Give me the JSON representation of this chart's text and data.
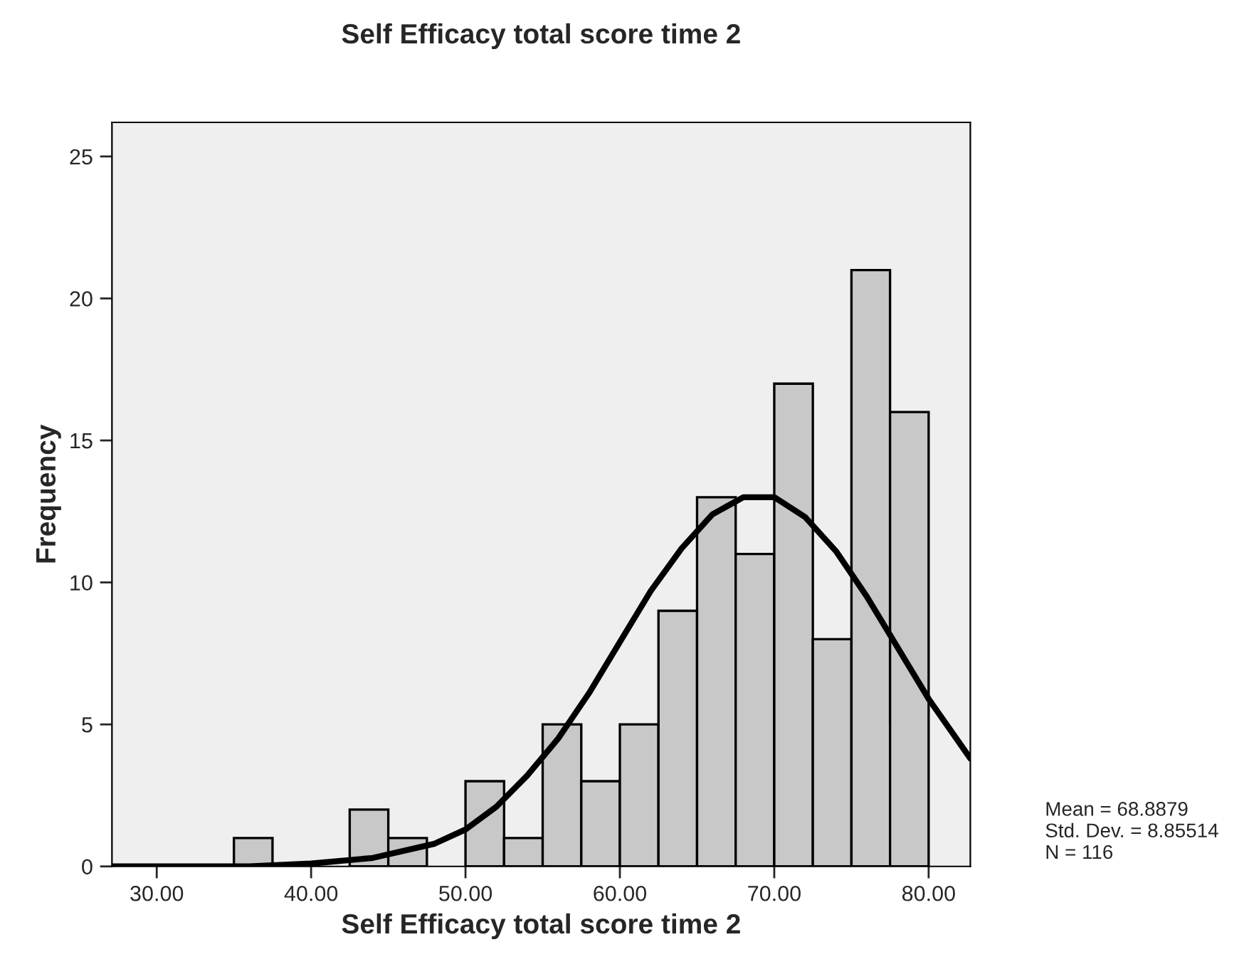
{
  "chart_data": {
    "type": "histogram",
    "title": "Self Efficacy total score time 2",
    "xlabel": "Self Efficacy total score time 2",
    "ylabel": "Frequency",
    "bins": [
      35,
      37.5,
      40,
      42.5,
      45,
      47.5,
      50,
      52.5,
      55,
      57.5,
      60,
      62.5,
      65,
      67.5,
      70,
      72.5,
      75,
      77.5,
      80
    ],
    "values": [
      1,
      0,
      0,
      2,
      1,
      0,
      3,
      1,
      5,
      3,
      5,
      9,
      13,
      11,
      17,
      8,
      21,
      16
    ],
    "color": "#c8c8c8",
    "series": [
      {
        "type": "line",
        "color": "#000000",
        "x": [
          27.1,
          32,
          36,
          40,
          44,
          48,
          50,
          52,
          54,
          56,
          58,
          60,
          62,
          64,
          66,
          68,
          70,
          72,
          74,
          76,
          78,
          80,
          82.7
        ],
        "values": [
          0,
          0,
          0,
          0.1,
          0.3,
          0.8,
          1.3,
          2.1,
          3.2,
          4.5,
          6.1,
          7.9,
          9.7,
          11.2,
          12.4,
          13.0,
          13.0,
          12.3,
          11.1,
          9.5,
          7.7,
          5.9,
          3.8
        ]
      }
    ],
    "xlim": [
      27.1,
      82.7
    ],
    "ylim": [
      0,
      26.2
    ],
    "xticks": [
      {
        "value": 30,
        "label": "30.00"
      },
      {
        "value": 40,
        "label": "40.00"
      },
      {
        "value": 50,
        "label": "50.00"
      },
      {
        "value": 60,
        "label": "60.00"
      },
      {
        "value": 70,
        "label": "70.00"
      },
      {
        "value": 80,
        "label": "80.00"
      }
    ],
    "yticks": [
      0,
      5,
      10,
      15,
      20,
      25
    ],
    "annotations": [
      "Mean = 68.8879",
      "Std. Dev. = 8.85514",
      "N = 116"
    ]
  }
}
